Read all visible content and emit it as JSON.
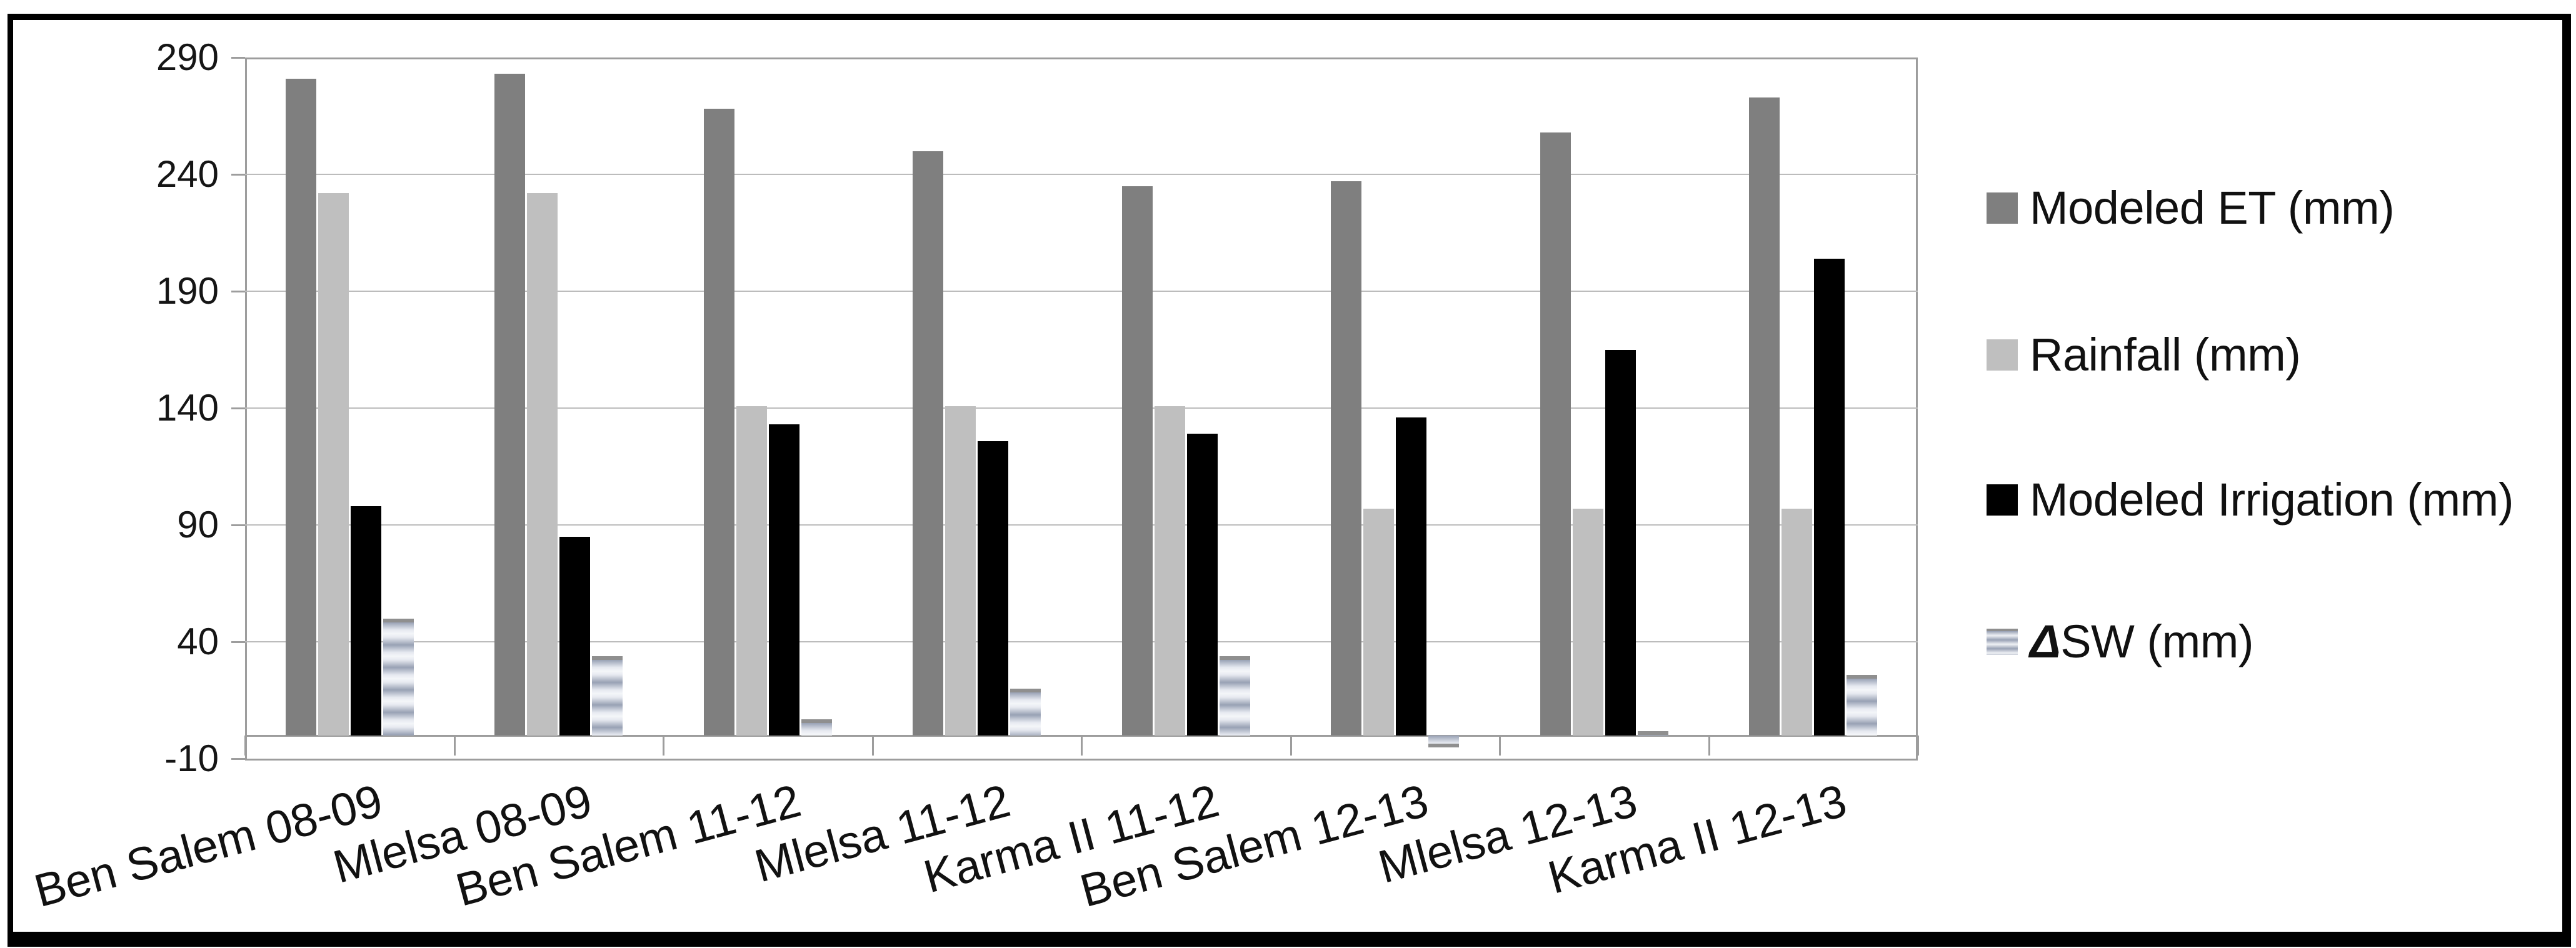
{
  "figure": {
    "background": "#ffffff",
    "border_color": "#000000"
  },
  "chart_data": {
    "type": "bar",
    "title": "",
    "xlabel": "",
    "ylabel": "",
    "categories": [
      "Ben Salem 08-09",
      "Mlelsa 08-09",
      "Ben Salem 11-12",
      "Mlelsa 11-12",
      "Karma II 11-12",
      "Ben Salem 12-13",
      "Mlelsa 12-13",
      "Karma II 12-13"
    ],
    "series": [
      {
        "name": "Modeled ET (mm)",
        "color": "#7f7f7f",
        "values": [
          281,
          283,
          268,
          250,
          235,
          237,
          258,
          273
        ]
      },
      {
        "name": "Rainfall (mm)",
        "color": "#bfbfbf",
        "values": [
          232,
          232,
          141,
          141,
          141,
          97,
          97,
          97
        ]
      },
      {
        "name": "Modeled Irrigation (mm)",
        "color": "#000000",
        "values": [
          98,
          85,
          133,
          126,
          129,
          136,
          165,
          204
        ]
      },
      {
        "name": "ΔSW (mm)",
        "color": "blue-gray striped gradient",
        "values": [
          50,
          34,
          7,
          20,
          34,
          -5,
          2,
          26
        ]
      }
    ],
    "y_ticks": [
      290,
      240,
      190,
      140,
      90,
      40,
      -10
    ],
    "ylim": [
      -10,
      290
    ],
    "grid": "horizontal",
    "gridline_color": "#bcbcbc",
    "axis_color": "#9d9d9d",
    "legend_position": "right",
    "x_label_rotation_deg": -15
  },
  "legend": {
    "items": [
      "Modeled ET (mm)",
      "Rainfall (mm)",
      "Modeled Irrigation (mm)",
      "ΔSW (mm)"
    ]
  }
}
